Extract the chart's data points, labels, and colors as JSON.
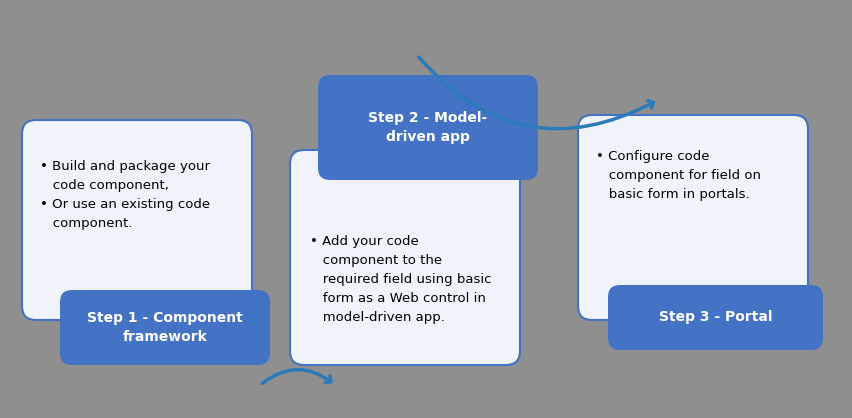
{
  "background_color": "#8F8F8F",
  "box_fill_white": "#F0F4FA",
  "box_fill_blue": "#4472C4",
  "box_border_blue": "#4472C4",
  "arrow_color": "#2B7BB9",
  "step1_title": "Step 1 - Component\nframework",
  "step2_title": "Step 2 - Model-\ndriven app",
  "step3_title": "Step 3 - Portal",
  "step1_body": "• Build and package your\n   code component,\n• Or use an existing code\n   component.",
  "step2_body": "• Add your code\n   component to the\n   required field using basic\n   form as a Web control in\n   model-driven app.",
  "step3_body": "• Configure code\n   component for field on\n   basic form in portals.",
  "fig_width": 8.52,
  "fig_height": 4.18,
  "dpi": 100
}
